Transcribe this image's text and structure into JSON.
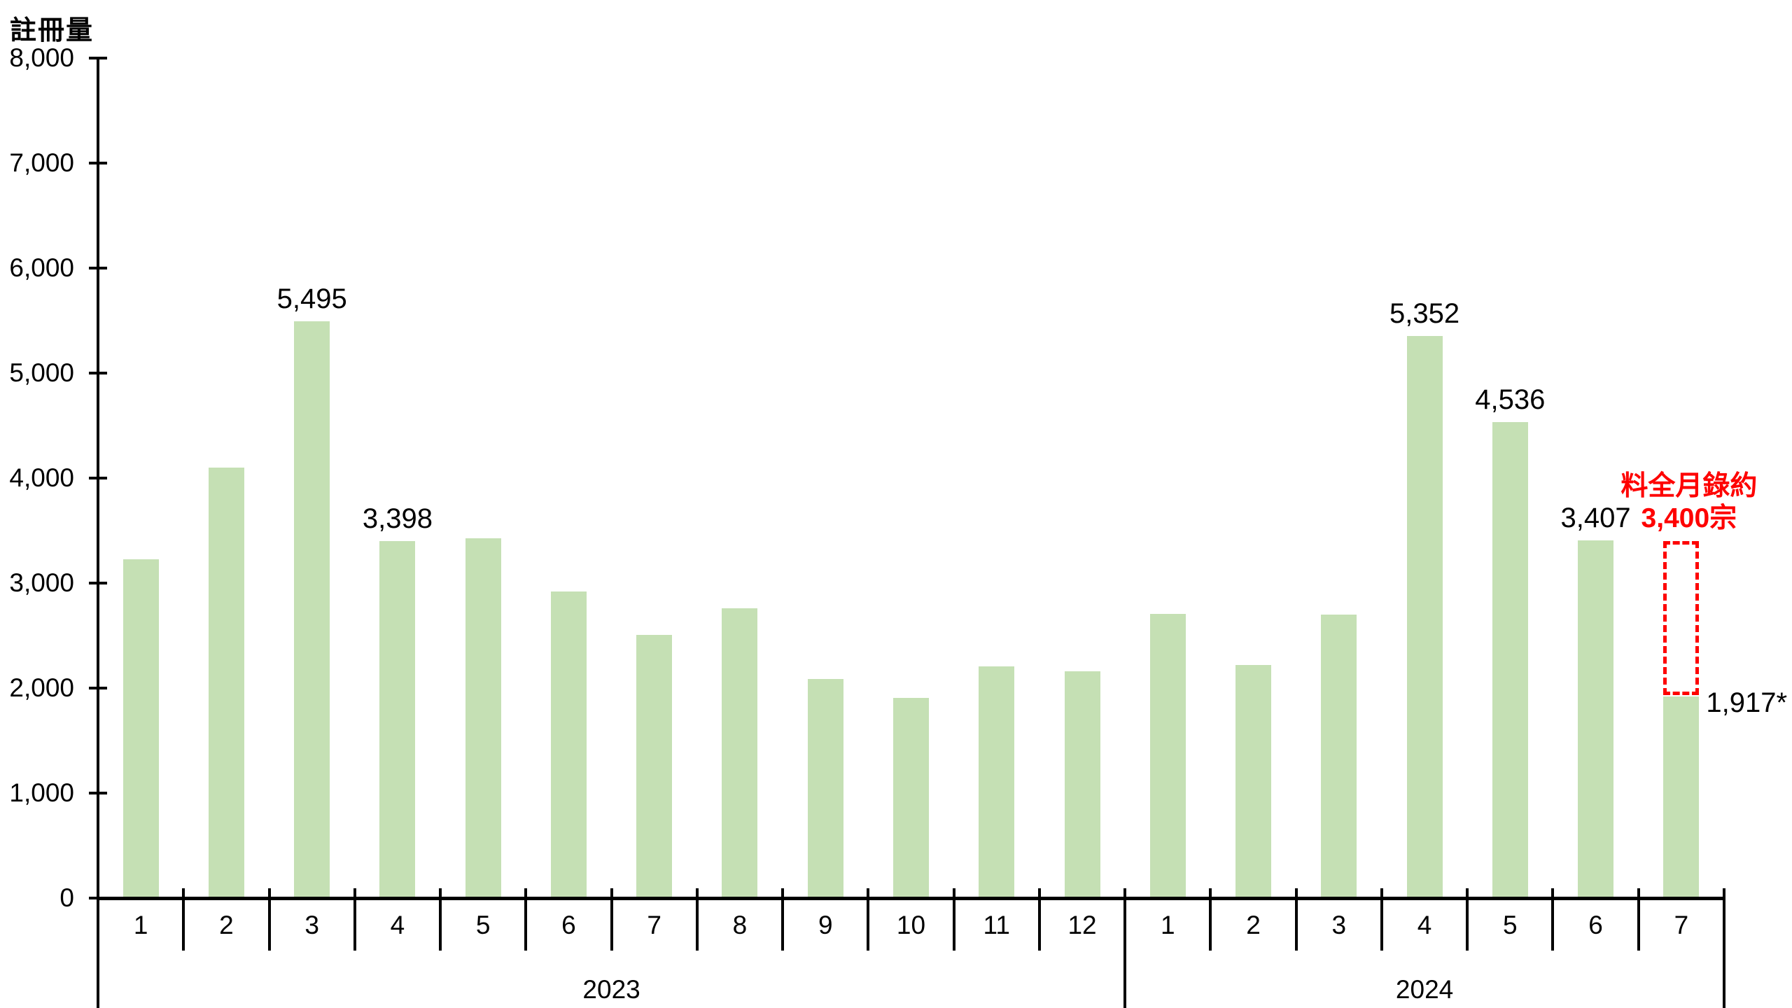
{
  "chart_data": {
    "type": "bar",
    "title": "註冊量",
    "y_axis": {
      "min": 0,
      "max": 8000,
      "tick_step": 1000,
      "tick_labels": [
        "0",
        "1,000",
        "2,000",
        "3,000",
        "4,000",
        "5,000",
        "6,000",
        "7,000",
        "8,000"
      ]
    },
    "grid": false,
    "legend": false,
    "groups": [
      {
        "year": "2023",
        "categories": [
          "1",
          "2",
          "3",
          "4",
          "5",
          "6",
          "7",
          "8",
          "9",
          "10",
          "11",
          "12"
        ],
        "values": [
          3230,
          4100,
          5495,
          3398,
          3430,
          2920,
          2510,
          2760,
          2085,
          1910,
          2205,
          2160
        ]
      },
      {
        "year": "2024",
        "categories": [
          "1",
          "2",
          "3",
          "4",
          "5",
          "6",
          "7"
        ],
        "values": [
          2710,
          2220,
          2700,
          5352,
          4536,
          3407,
          1917
        ]
      }
    ],
    "bar_labels": [
      {
        "group": 0,
        "index": 2,
        "text": "5,495",
        "placement": "above"
      },
      {
        "group": 0,
        "index": 3,
        "text": "3,398",
        "placement": "above"
      },
      {
        "group": 1,
        "index": 3,
        "text": "5,352",
        "placement": "above"
      },
      {
        "group": 1,
        "index": 4,
        "text": "4,536",
        "placement": "above"
      },
      {
        "group": 1,
        "index": 5,
        "text": "3,407",
        "placement": "above"
      },
      {
        "group": 1,
        "index": 6,
        "text": "1,917*",
        "placement": "right"
      }
    ],
    "forecast_annotation": {
      "group": 1,
      "index": 6,
      "lines": [
        "料全月錄約",
        "3,400宗"
      ],
      "box_top_value": 3400,
      "box_bottom_value": 1917
    },
    "colors": {
      "bar_fill": "#c5e0b4",
      "axis": "#000000",
      "label_text": "#000000",
      "annotation_red": "#fe0000",
      "background": "#ffffff"
    }
  }
}
